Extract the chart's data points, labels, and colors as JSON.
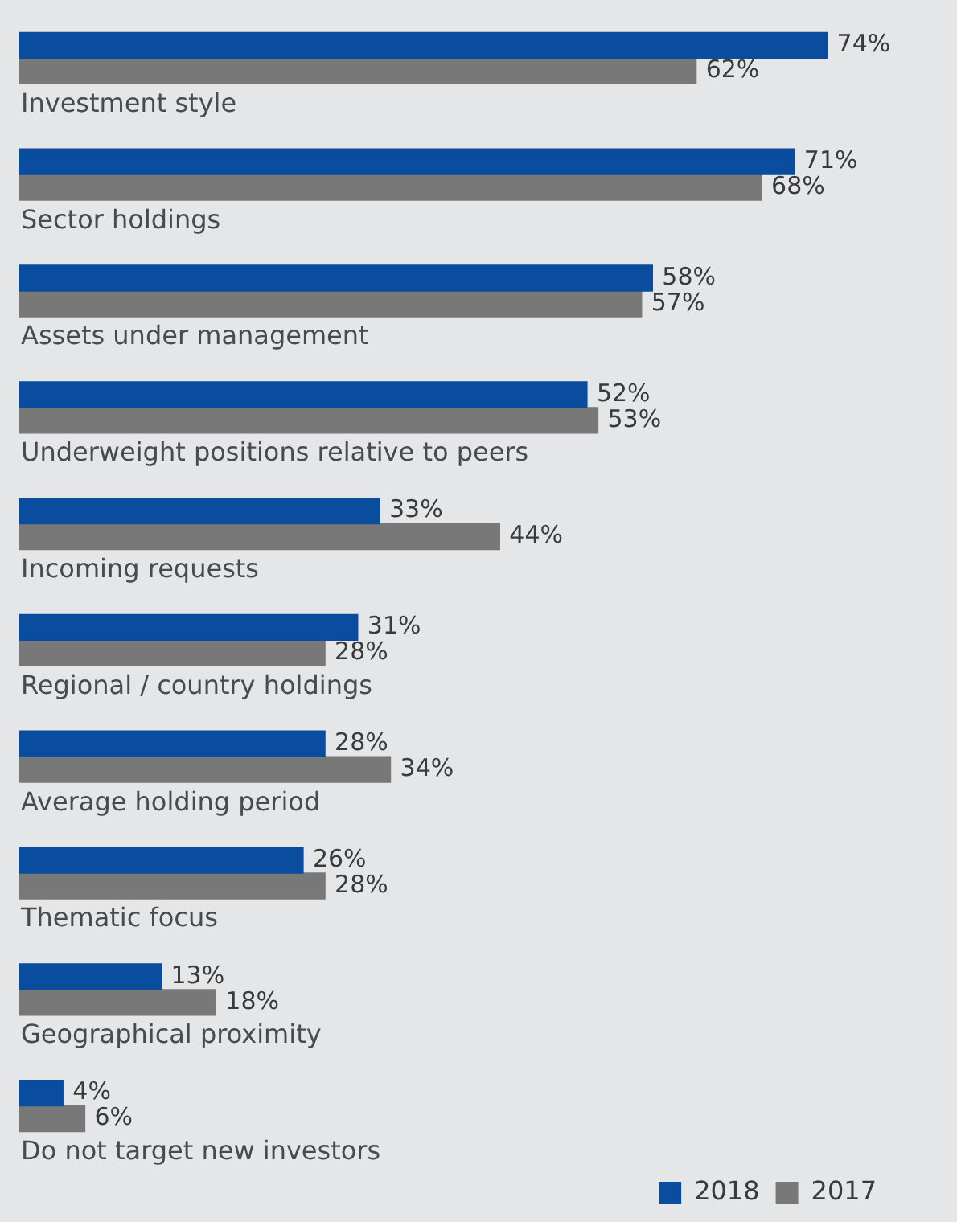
{
  "chart_data": {
    "type": "bar",
    "orientation": "horizontal",
    "categories": [
      "Investment style",
      "Sector holdings",
      "Assets under management",
      "Underweight positions relative to peers",
      "Incoming requests",
      "Regional / country holdings",
      "Average holding period",
      "Thematic focus",
      "Geographical proximity",
      "Do not target new investors"
    ],
    "series": [
      {
        "name": "2018",
        "color": "#0a4d9e",
        "values": [
          74,
          71,
          58,
          52,
          33,
          31,
          28,
          26,
          13,
          4
        ],
        "value_labels": [
          "74%",
          "71%",
          "58%",
          "52%",
          "33%",
          "31%",
          "28%",
          "26%",
          "13%",
          "4%"
        ]
      },
      {
        "name": "2017",
        "color": "#787878",
        "values": [
          62,
          68,
          57,
          53,
          44,
          28,
          34,
          28,
          18,
          6
        ],
        "value_labels": [
          "62%",
          "68%",
          "57%",
          "53%",
          "44%",
          "28%",
          "34%",
          "28%",
          "18%",
          "6%"
        ]
      }
    ],
    "legend": "bottom right"
  }
}
